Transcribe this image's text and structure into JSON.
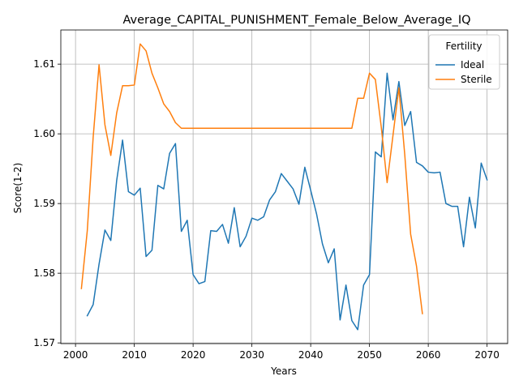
{
  "chart_data": {
    "type": "line",
    "title": "Average_CAPITAL_PUNISHMENT_Female_Below_Average_IQ",
    "xlabel": "Years",
    "ylabel": "Score(1-2)",
    "xlim": [
      1997.5,
      2073.5
    ],
    "ylim": [
      1.5699,
      1.6149
    ],
    "xticks": [
      2000,
      2010,
      2020,
      2030,
      2040,
      2050,
      2060,
      2070
    ],
    "yticks": [
      1.57,
      1.58,
      1.59,
      1.6,
      1.61
    ],
    "ytick_labels": [
      "1.57",
      "1.58",
      "1.59",
      "1.60",
      "1.61"
    ],
    "grid": true,
    "legend": {
      "title": "Fertility",
      "position": "top-right"
    },
    "series": [
      {
        "name": "Ideal",
        "color": "#1f77b4",
        "x": [
          2002,
          2003,
          2004,
          2005,
          2006,
          2007,
          2008,
          2009,
          2010,
          2011,
          2012,
          2013,
          2014,
          2015,
          2016,
          2017,
          2018,
          2019,
          2020,
          2021,
          2022,
          2023,
          2024,
          2025,
          2026,
          2027,
          2028,
          2029,
          2030,
          2031,
          2032,
          2033,
          2034,
          2035,
          2036,
          2037,
          2038,
          2039,
          2040,
          2041,
          2042,
          2043,
          2044,
          2045,
          2046,
          2047,
          2048,
          2049,
          2050,
          2051,
          2052,
          2053,
          2054,
          2055,
          2056,
          2057,
          2058,
          2059,
          2060,
          2061,
          2062,
          2063,
          2064,
          2065,
          2066,
          2067,
          2068,
          2069,
          2070
        ],
        "y": [
          1.5739,
          1.5755,
          1.5813,
          1.5862,
          1.5847,
          1.5933,
          1.5991,
          1.5917,
          1.5912,
          1.5922,
          1.5824,
          1.5833,
          1.5926,
          1.5921,
          1.5972,
          1.5986,
          1.586,
          1.5876,
          1.5798,
          1.5785,
          1.5788,
          1.5861,
          1.586,
          1.587,
          1.5843,
          1.5894,
          1.5838,
          1.5853,
          1.5879,
          1.5876,
          1.5881,
          1.5905,
          1.5917,
          1.5943,
          1.5932,
          1.5921,
          1.5899,
          1.5952,
          1.5919,
          1.5885,
          1.5842,
          1.5815,
          1.5835,
          1.5733,
          1.5783,
          1.5732,
          1.5719,
          1.5783,
          1.5798,
          1.5974,
          1.5967,
          1.6087,
          1.602,
          1.6075,
          1.6012,
          1.6032,
          1.5959,
          1.5954,
          1.5945,
          1.5944,
          1.5945,
          1.59,
          1.5896,
          1.5896,
          1.5838,
          1.5909,
          1.5865,
          1.5958,
          1.5934
        ]
      },
      {
        "name": "Sterile",
        "color": "#ff7f0e",
        "x": [
          2001,
          2002,
          2003,
          2004,
          2005,
          2006,
          2007,
          2008,
          2009,
          2010,
          2011,
          2012,
          2013,
          2014,
          2015,
          2016,
          2017,
          2018,
          2019,
          2020,
          2021,
          2022,
          2023,
          2024,
          2025,
          2026,
          2027,
          2028,
          2029,
          2030,
          2031,
          2032,
          2033,
          2034,
          2035,
          2036,
          2037,
          2038,
          2039,
          2040,
          2041,
          2042,
          2043,
          2044,
          2045,
          2046,
          2047,
          2048,
          2049,
          2050,
          2051,
          2052,
          2053,
          2054,
          2055,
          2056,
          2057,
          2058,
          2059
        ],
        "y": [
          1.5778,
          1.5861,
          1.5995,
          1.6099,
          1.6013,
          1.5969,
          1.603,
          1.6069,
          1.6069,
          1.607,
          1.6129,
          1.6119,
          1.6087,
          1.6066,
          1.6043,
          1.6032,
          1.6016,
          1.6008,
          1.6008,
          1.6008,
          1.6008,
          1.6008,
          1.6008,
          1.6008,
          1.6008,
          1.6008,
          1.6008,
          1.6008,
          1.6008,
          1.6008,
          1.6008,
          1.6008,
          1.6008,
          1.6008,
          1.6008,
          1.6008,
          1.6008,
          1.6008,
          1.6008,
          1.6008,
          1.6008,
          1.6008,
          1.6008,
          1.6008,
          1.6008,
          1.6008,
          1.6008,
          1.6051,
          1.6051,
          1.6087,
          1.6078,
          1.601,
          1.593,
          1.5998,
          1.6066,
          1.597,
          1.5856,
          1.581,
          1.5742
        ]
      }
    ]
  }
}
